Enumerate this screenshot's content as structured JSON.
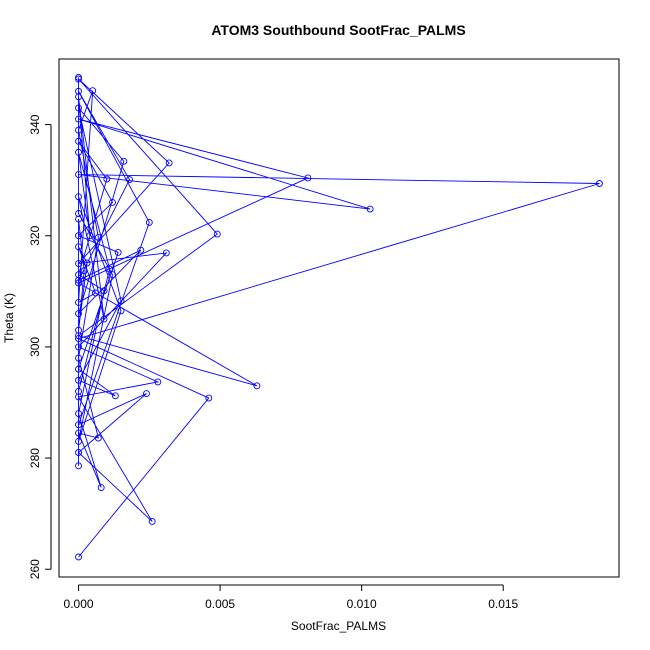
{
  "chart_data": {
    "type": "line",
    "title": "ATOM3 Southbound SootFrac_PALMS",
    "xlabel": "SootFrac_PALMS",
    "ylabel": "Theta (K)",
    "xlim": [
      -0.00069,
      0.01909
    ],
    "ylim": [
      258.6,
      351.8
    ],
    "xticks": [
      0.0,
      0.005,
      0.01,
      0.015
    ],
    "xtick_labels": [
      "0.000",
      "0.005",
      "0.010",
      "0.015"
    ],
    "yticks": [
      260,
      280,
      300,
      320,
      340
    ],
    "ytick_labels": [
      "260",
      "280",
      "300",
      "320",
      "340"
    ],
    "grid": false,
    "series": [
      {
        "color": "#0000ff",
        "marker": "open-circle",
        "points": [
          [
            0.0,
            262.2
          ],
          [
            0.0046,
            290.8
          ],
          [
            0.0,
            301.5
          ],
          [
            0.0184,
            329.4
          ],
          [
            0.0,
            331.0
          ],
          [
            0.0103,
            324.8
          ],
          [
            0.0,
            341.0
          ],
          [
            0.0081,
            330.4
          ],
          [
            0.0,
            311.5
          ],
          [
            0.0063,
            293.0
          ],
          [
            0.0,
            302.0
          ],
          [
            0.0049,
            320.3
          ],
          [
            0.0,
            348.2
          ],
          [
            0.0032,
            333.1
          ],
          [
            0.0,
            315.0
          ],
          [
            0.0031,
            316.9
          ],
          [
            0.0,
            300.0
          ],
          [
            0.0028,
            293.7
          ],
          [
            0.0,
            291.0
          ],
          [
            0.0026,
            268.6
          ],
          [
            0.0,
            281.0
          ],
          [
            0.0024,
            291.6
          ],
          [
            0.0,
            286.0
          ],
          [
            0.0025,
            322.4
          ],
          [
            0.0,
            346.0
          ],
          [
            0.0018,
            330.1
          ],
          [
            0.0,
            312.0
          ],
          [
            0.0022,
            317.4
          ],
          [
            0.0,
            306.0
          ],
          [
            0.0016,
            333.4
          ],
          [
            0.0,
            343.0
          ],
          [
            0.0015,
            308.3
          ],
          [
            0.0,
            294.0
          ],
          [
            0.0013,
            291.2
          ],
          [
            0.0,
            296.0
          ],
          [
            0.0014,
            317.0
          ],
          [
            0.0,
            320.0
          ],
          [
            0.0012,
            326.0
          ],
          [
            0.0,
            337.0
          ],
          [
            0.001,
            330.2
          ],
          [
            0.0,
            313.0
          ],
          [
            0.0009,
            310.1
          ],
          [
            0.0,
            288.0
          ],
          [
            0.0008,
            274.7
          ],
          [
            0.0,
            284.5
          ],
          [
            0.0007,
            283.6
          ],
          [
            0.0,
            298.0
          ],
          [
            0.0007,
            319.7
          ],
          [
            0.0,
            339.0
          ],
          [
            0.0005,
            346.1
          ],
          [
            0.0,
            308.0
          ],
          [
            0.0006,
            309.7
          ],
          [
            0.0,
            318.0
          ],
          [
            0.0003,
            315.1
          ],
          [
            0.0,
            303.0
          ],
          [
            0.0002,
            313.7
          ],
          [
            0.0,
            323.0
          ],
          [
            0.0,
            278.6
          ],
          [
            0.0,
            292.0
          ],
          [
            0.0011,
            314.0
          ],
          [
            0.0,
            335.0
          ],
          [
            0.0004,
            320.0
          ],
          [
            0.0,
            345.0
          ],
          [
            0.0009,
            305.0
          ],
          [
            0.0,
            327.0
          ],
          [
            0.0015,
            306.5
          ],
          [
            0.0,
            283.0
          ],
          [
            0.0012,
            313.0
          ],
          [
            0.0,
            324.0
          ],
          [
            0.0,
            348.5
          ]
        ]
      }
    ]
  }
}
